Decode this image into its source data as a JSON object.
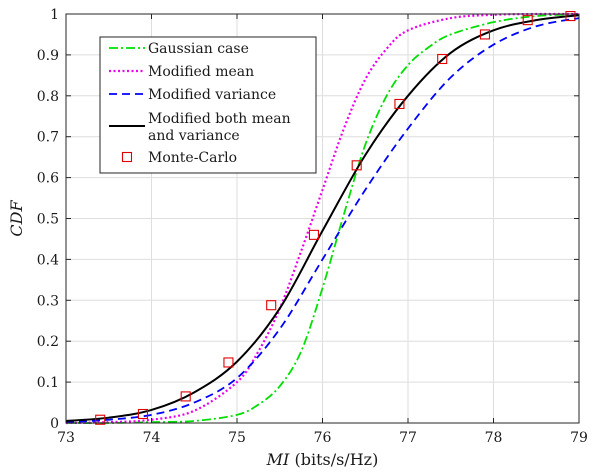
{
  "chart_data": {
    "type": "line",
    "xlabel_var": "MI",
    "xlabel_unit": " (bits/s/Hz)",
    "ylabel": "CDF",
    "xlim": [
      73,
      79
    ],
    "ylim": [
      0,
      1
    ],
    "x_ticks": [
      "73",
      "74",
      "75",
      "76",
      "77",
      "78",
      "79"
    ],
    "y_ticks": [
      "0",
      "0.1",
      "0.2",
      "0.3",
      "0.4",
      "0.5",
      "0.6",
      "0.7",
      "0.8",
      "0.9",
      "1"
    ],
    "grid": true,
    "legend_position": "top-left",
    "series": [
      {
        "name": "Gaussian case",
        "color": "#00e000",
        "style": "dash-dot",
        "x": [
          73.0,
          73.5,
          74.0,
          74.5,
          75.0,
          75.25,
          75.5,
          75.75,
          76.0,
          76.25,
          76.5,
          76.75,
          77.0,
          77.25,
          77.5,
          78.0,
          78.5,
          79.0
        ],
        "y": [
          0.0,
          0.0,
          0.002,
          0.005,
          0.02,
          0.045,
          0.09,
          0.175,
          0.33,
          0.51,
          0.68,
          0.8,
          0.875,
          0.92,
          0.95,
          0.98,
          0.995,
          0.999
        ]
      },
      {
        "name": "Modified mean",
        "color": "#ee00ee",
        "style": "dotted",
        "x": [
          73.0,
          73.5,
          74.0,
          74.5,
          75.0,
          75.25,
          75.5,
          75.75,
          76.0,
          76.25,
          76.5,
          76.75,
          77.0,
          77.5,
          78.0,
          78.5,
          79.0
        ],
        "y": [
          0.0,
          0.002,
          0.008,
          0.03,
          0.1,
          0.175,
          0.28,
          0.42,
          0.57,
          0.72,
          0.84,
          0.915,
          0.96,
          0.99,
          0.998,
          1.0,
          1.0
        ]
      },
      {
        "name": "Modified variance",
        "color": "#0000ff",
        "style": "dashed",
        "x": [
          73.0,
          73.5,
          74.0,
          74.5,
          75.0,
          75.5,
          76.0,
          76.5,
          77.0,
          77.5,
          78.0,
          78.5,
          79.0
        ],
        "y": [
          0.002,
          0.008,
          0.02,
          0.05,
          0.11,
          0.23,
          0.4,
          0.57,
          0.72,
          0.845,
          0.925,
          0.97,
          0.99
        ]
      },
      {
        "name": "Modified both mean and variance",
        "legend_lines": [
          "Modified both mean",
          "and variance"
        ],
        "color": "#000000",
        "style": "solid",
        "x": [
          73.0,
          73.5,
          74.0,
          74.5,
          75.0,
          75.5,
          76.0,
          76.5,
          77.0,
          77.5,
          78.0,
          78.5,
          79.0
        ],
        "y": [
          0.005,
          0.013,
          0.032,
          0.075,
          0.15,
          0.28,
          0.47,
          0.655,
          0.8,
          0.905,
          0.96,
          0.985,
          0.997
        ]
      },
      {
        "name": "Monte-Carlo",
        "color": "#e00000",
        "style": "markers",
        "marker": "square",
        "x": [
          73.4,
          73.9,
          74.4,
          74.9,
          75.4,
          75.9,
          76.4,
          76.9,
          77.4,
          77.9,
          78.4,
          78.9
        ],
        "y": [
          0.008,
          0.022,
          0.065,
          0.148,
          0.288,
          0.46,
          0.63,
          0.78,
          0.89,
          0.95,
          0.985,
          0.995
        ]
      }
    ]
  }
}
